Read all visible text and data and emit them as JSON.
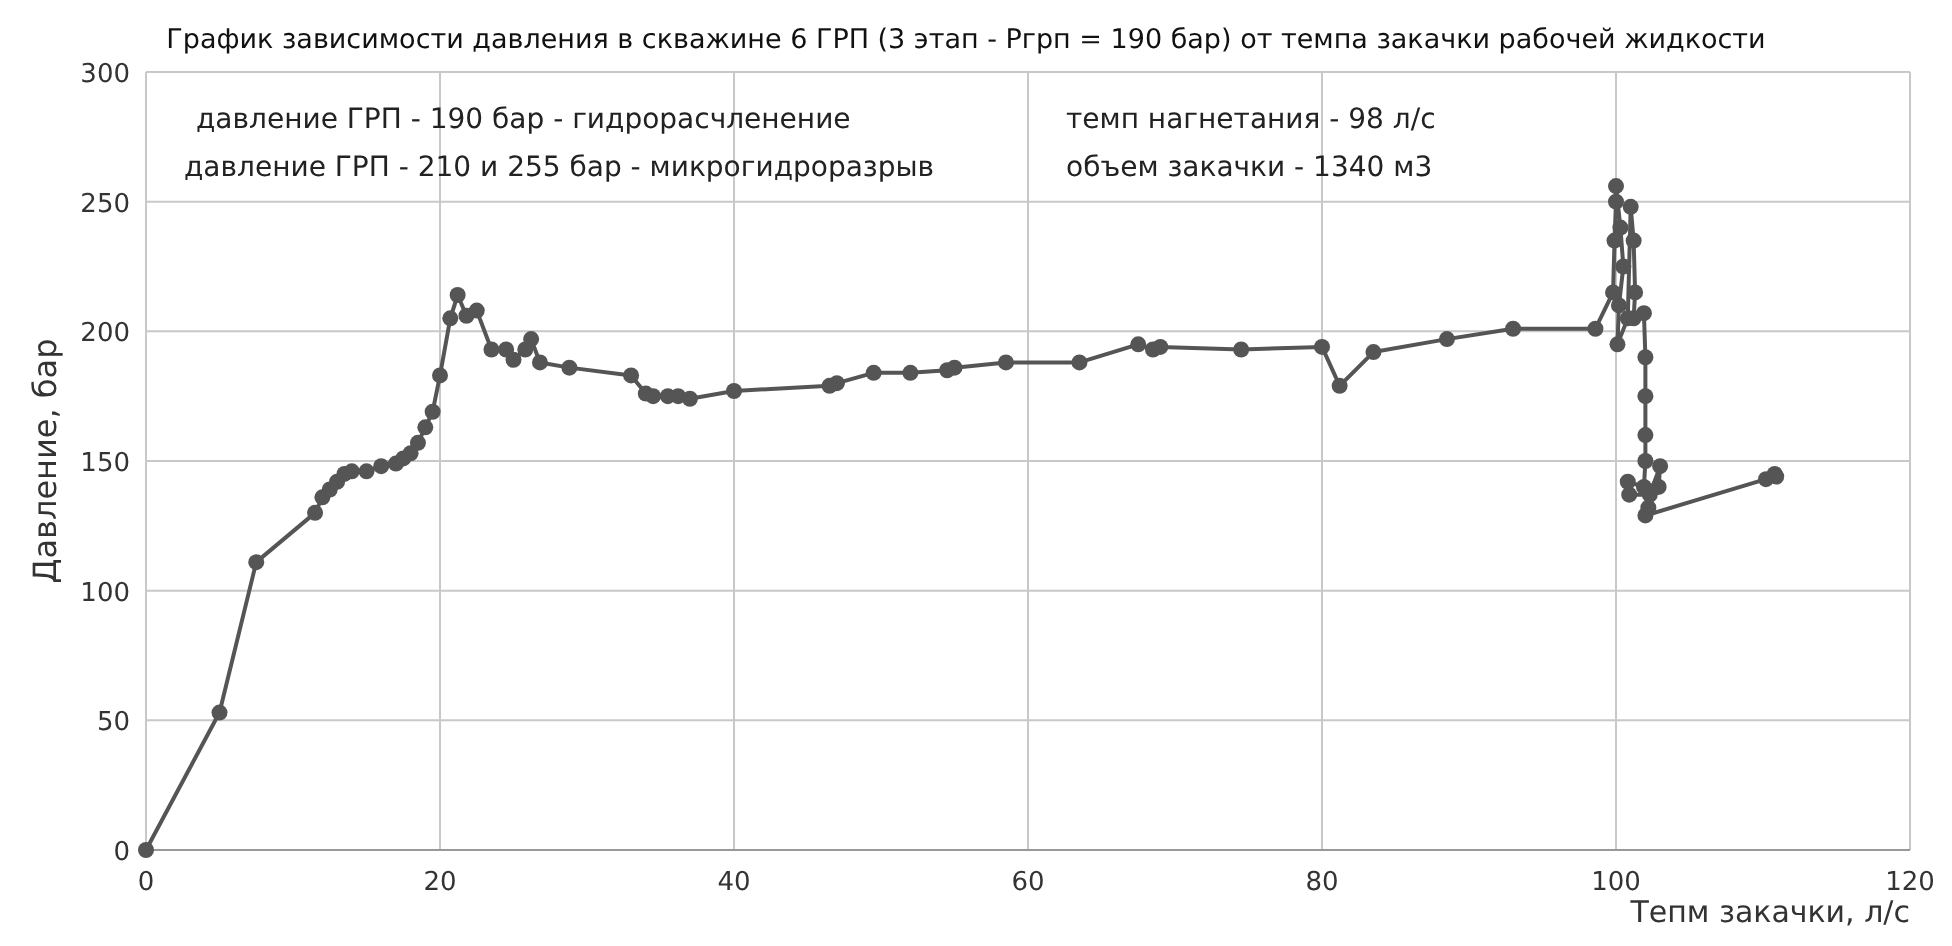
{
  "chart_data": {
    "type": "line",
    "title": "График зависимости давления в скважине 6 ГРП (3 этап - Ргрп = 190 бар) от  темпа закачки  рабочей жидкости",
    "xlabel": "Тепм закачки, л/с",
    "ylabel": "Давление, бар",
    "annotations": [
      "давление ГРП - 190 бар - гидрорасчленение",
      "давление ГРП - 210 и 255 бар - микрогидроразрыв",
      "темп нагнетания - 98 л/с",
      "объем закачки - 1340 м3"
    ],
    "xlim": [
      0,
      120
    ],
    "xticks": [
      0,
      20,
      40,
      60,
      80,
      100,
      120
    ],
    "ylim": [
      0,
      300
    ],
    "yticks": [
      0,
      50,
      100,
      150,
      200,
      250,
      300
    ],
    "grid": true,
    "marker": "circle",
    "line_style": "solid",
    "series": [
      {
        "color": "#555555",
        "x": [
          0,
          5,
          7.5,
          11.5,
          12,
          12.5,
          13,
          13.5,
          14,
          15,
          16,
          17,
          17.5,
          18,
          18.5,
          19,
          19.5,
          20,
          20.7,
          21.2,
          21.8,
          22.5,
          23.5,
          24.5,
          25,
          25.8,
          26.2,
          26.8,
          28.8,
          33,
          34,
          34.5,
          35.5,
          36.2,
          37,
          40,
          46.5,
          47,
          49.5,
          52,
          54.5,
          55,
          58.5,
          63.5,
          67.5,
          68.5,
          69,
          74.5,
          80,
          81.2,
          83.5,
          88.5,
          93,
          98.6,
          99.8,
          99.9,
          100,
          100,
          100.3,
          100.5,
          100.2,
          100.1,
          100.8,
          101,
          101.2,
          101.3,
          101.2,
          101.9,
          102,
          102,
          102,
          102,
          101.9,
          100.8,
          100.9,
          102.3,
          103,
          102.9,
          102.2,
          102,
          110.2,
          110.8,
          110.9
        ],
        "values": [
          0,
          53,
          111,
          130,
          136,
          139,
          142,
          145,
          146,
          146,
          148,
          149,
          151,
          153,
          157,
          163,
          169,
          183,
          205,
          214,
          206,
          208,
          193,
          193,
          189,
          193,
          197,
          188,
          186,
          183,
          176,
          175,
          175,
          175,
          174,
          177,
          179,
          180,
          184,
          184,
          185,
          186,
          188,
          188,
          195,
          193,
          194,
          193,
          194,
          179,
          192,
          197,
          201,
          201,
          215,
          235,
          250,
          256,
          240,
          225,
          210,
          195,
          205,
          248,
          235,
          215,
          205,
          207,
          190,
          175,
          160,
          150,
          140,
          142,
          137,
          137,
          148,
          140,
          132,
          129,
          143,
          145,
          144
        ]
      }
    ]
  }
}
